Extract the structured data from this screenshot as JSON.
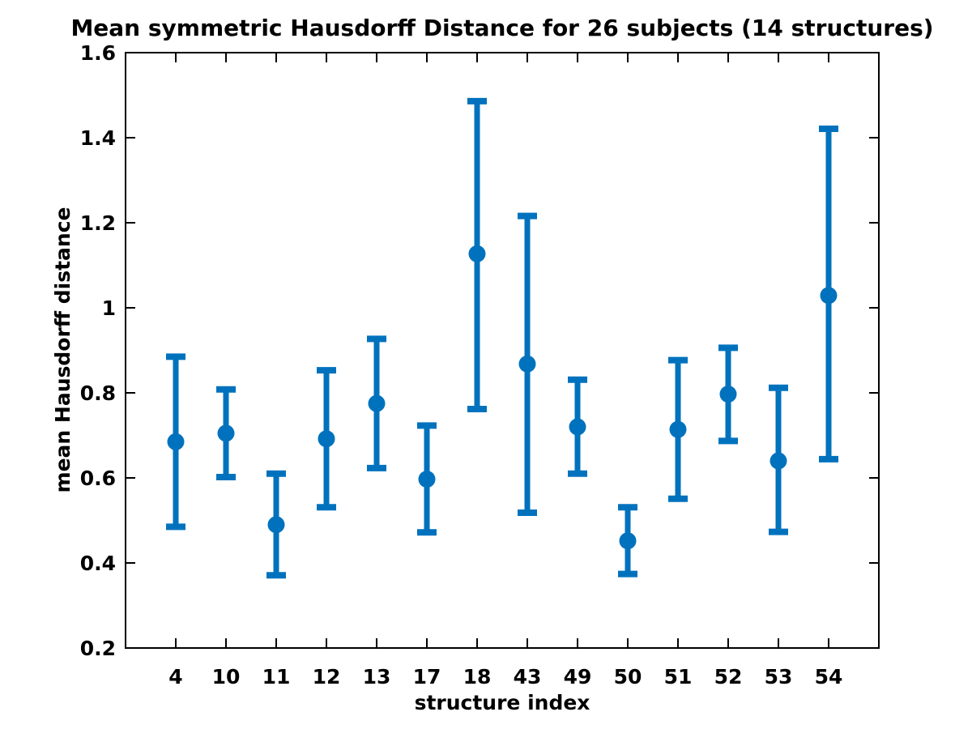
{
  "figure": {
    "background": "#ffffff"
  },
  "chart_data": {
    "type": "scatter",
    "style": "errorbar",
    "title": "Mean symmetric Hausdorff Distance for 26 subjects (14 structures)",
    "xlabel": "structure index",
    "ylabel": "mean Hausdorff distance",
    "categories": [
      "4",
      "10",
      "11",
      "12",
      "13",
      "17",
      "18",
      "43",
      "49",
      "50",
      "51",
      "52",
      "53",
      "54"
    ],
    "series": [
      {
        "name": "mean Hausdorff distance",
        "means": [
          0.685,
          0.705,
          0.49,
          0.692,
          0.775,
          0.597,
          1.127,
          0.868,
          0.72,
          0.452,
          0.714,
          0.797,
          0.64,
          1.029
        ],
        "upper": [
          0.885,
          0.808,
          0.61,
          0.853,
          0.927,
          0.723,
          1.486,
          1.216,
          0.831,
          0.531,
          0.877,
          0.906,
          0.812,
          1.421
        ],
        "lower": [
          0.485,
          0.602,
          0.371,
          0.531,
          0.623,
          0.472,
          0.762,
          0.518,
          0.61,
          0.374,
          0.551,
          0.687,
          0.473,
          0.644
        ]
      }
    ],
    "ylim": [
      0.2,
      1.6
    ],
    "y_ticks": [
      0.2,
      0.4,
      0.6,
      0.8,
      1.0,
      1.2,
      1.4,
      1.6
    ],
    "y_tick_labels": [
      "0.2",
      "0.4",
      "0.6",
      "0.8",
      "1",
      "1.2",
      "1.4",
      "1.6"
    ],
    "grid": false,
    "legend": "none",
    "series_color": "#0072BD",
    "axis_color": "#000000"
  }
}
